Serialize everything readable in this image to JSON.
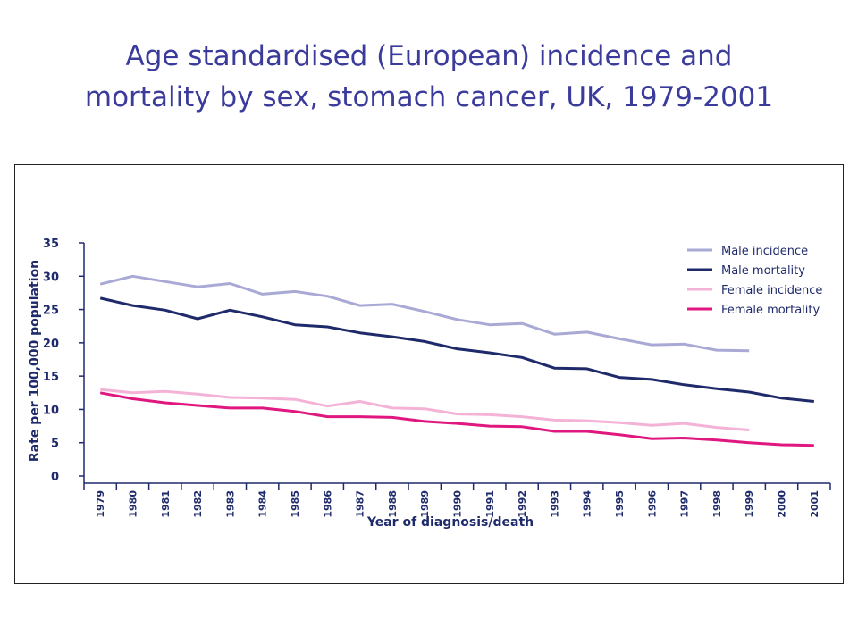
{
  "slide": {
    "title_line1": "Age standardised (European) incidence and",
    "title_line2": "mortality by sex, stomach cancer, UK, 1979-2001"
  },
  "colors": {
    "title": "#3b3b9c",
    "axis": "#1f2a6b",
    "male_incidence": "#a9a9d6",
    "male_mortality": "#1f2a6b",
    "female_incidence": "#f4b3d6",
    "female_mortality": "#e0177f"
  },
  "chart_data": {
    "type": "line",
    "title": "Age standardised (European) incidence and mortality by sex, stomach cancer, UK, 1979-2001",
    "xlabel": "Year of diagnosis/death",
    "ylabel": "Rate per 100,000 population",
    "ylim": [
      0,
      35
    ],
    "yticks": [
      0,
      5,
      10,
      15,
      20,
      25,
      30,
      35
    ],
    "categories": [
      "1979",
      "1980",
      "1981",
      "1982",
      "1983",
      "1984",
      "1985",
      "1986",
      "1987",
      "1988",
      "1989",
      "1990",
      "1991",
      "1992",
      "1993",
      "1994",
      "1995",
      "1996",
      "1997",
      "1998",
      "1999",
      "2000",
      "2001"
    ],
    "legend_position": "top-right",
    "grid": false,
    "series": [
      {
        "name": "Male incidence",
        "color": "#a9a9d6",
        "values": [
          28.8,
          30.0,
          29.2,
          28.4,
          28.9,
          27.3,
          27.7,
          27.0,
          25.6,
          25.8,
          24.7,
          23.5,
          22.7,
          22.9,
          21.3,
          21.6,
          20.6,
          19.7,
          19.8,
          18.9,
          18.8,
          null,
          null
        ]
      },
      {
        "name": "Male mortality",
        "color": "#1f2a6b",
        "values": [
          26.7,
          25.6,
          24.9,
          23.6,
          24.9,
          23.9,
          22.7,
          22.4,
          21.5,
          20.9,
          20.2,
          19.1,
          18.5,
          17.8,
          16.2,
          16.1,
          14.8,
          14.5,
          13.7,
          13.1,
          12.6,
          11.7,
          11.2
        ]
      },
      {
        "name": "Female incidence",
        "color": "#f4b3d6",
        "values": [
          13.0,
          12.5,
          12.7,
          12.3,
          11.8,
          11.7,
          11.5,
          10.5,
          11.2,
          10.2,
          10.1,
          9.3,
          9.2,
          8.9,
          8.4,
          8.3,
          8.0,
          7.6,
          7.9,
          7.3,
          6.9,
          null,
          null
        ]
      },
      {
        "name": "Female mortality",
        "color": "#e0177f",
        "values": [
          12.5,
          11.6,
          11.0,
          10.6,
          10.2,
          10.2,
          9.7,
          8.9,
          8.9,
          8.8,
          8.2,
          7.9,
          7.5,
          7.4,
          6.7,
          6.7,
          6.2,
          5.6,
          5.7,
          5.4,
          5.0,
          4.7,
          4.6
        ]
      }
    ]
  }
}
